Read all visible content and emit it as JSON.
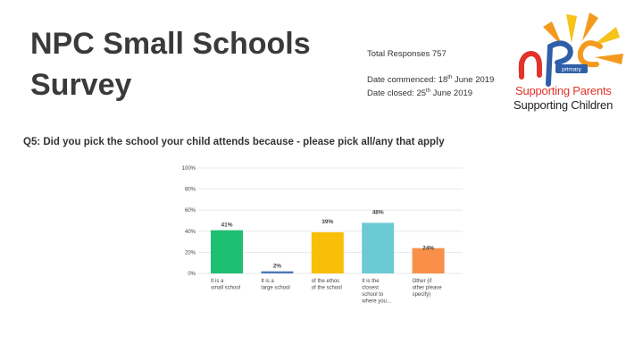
{
  "header": {
    "title_line1": "NPC Small Schools",
    "title_line2": "Survey"
  },
  "meta": {
    "responses": "Total Responses 757",
    "commenced_prefix": "Date commenced: 18",
    "commenced_sup": "th",
    "commenced_suffix": " June 2019",
    "closed_prefix": "Date closed: 25",
    "closed_sup": "th",
    "closed_suffix": " June 2019"
  },
  "logo": {
    "badge": "primary",
    "tagline1": "Supporting Parents",
    "tagline2": "Supporting Children",
    "colors": {
      "red": "#e2332b",
      "orange": "#f39a1e",
      "yellow": "#f6c419",
      "blue": "#2f5fa8"
    }
  },
  "question": "Q5: Did you pick the school your child attends because - please pick all/any that apply",
  "chart_data": {
    "type": "bar",
    "categories": [
      [
        "It is a",
        "small school"
      ],
      [
        "It is a",
        "large school"
      ],
      [
        "of the ethos",
        "of the school"
      ],
      [
        "It is the",
        "closest",
        "school to",
        "where you..."
      ],
      [
        "Other (if",
        "other please",
        "specify)"
      ]
    ],
    "values": [
      41,
      2,
      39,
      48,
      24
    ],
    "value_labels": [
      "41%",
      "2%",
      "39%",
      "48%",
      "24%"
    ],
    "colors": [
      "#1fbf73",
      "#4d78b8",
      "#f9be0a",
      "#6ccad4",
      "#f8904a"
    ],
    "yticks": [
      "0%",
      "20%",
      "40%",
      "60%",
      "80%",
      "100%"
    ],
    "ylim": [
      0,
      100
    ],
    "grid": true
  }
}
